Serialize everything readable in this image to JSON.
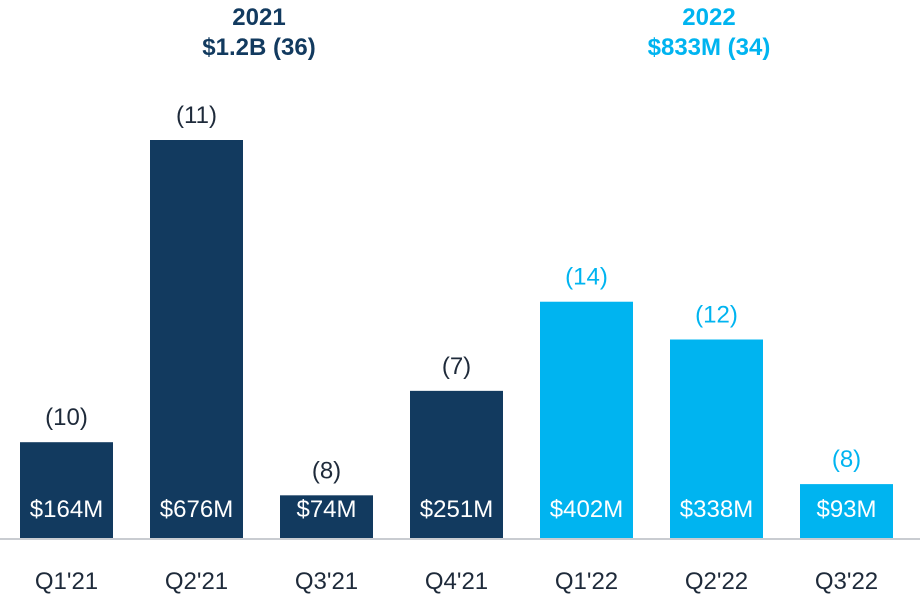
{
  "header_2021": {
    "year": "2021",
    "summary": "$1.2B (36)",
    "color": "#123a5f"
  },
  "header_2022": {
    "year": "2022",
    "summary": "$833M (34)",
    "color": "#00b4f0"
  },
  "chart_data": {
    "type": "bar",
    "categories": [
      "Q1'21",
      "Q2'21",
      "Q3'21",
      "Q4'21",
      "Q1'22",
      "Q2'22",
      "Q3'22"
    ],
    "values": [
      164,
      676,
      74,
      251,
      402,
      338,
      93
    ],
    "value_labels": [
      "$164M",
      "$676M",
      "$74M",
      "$251M",
      "$402M",
      "$338M",
      "$93M"
    ],
    "count_labels": [
      "(10)",
      "(11)",
      "(8)",
      "(7)",
      "(14)",
      "(12)",
      "(8)"
    ],
    "bar_colors": [
      "#123a5f",
      "#123a5f",
      "#123a5f",
      "#123a5f",
      "#00b4f0",
      "#00b4f0",
      "#00b4f0"
    ],
    "count_label_colors": [
      "#1e2a3a",
      "#1e2a3a",
      "#1e2a3a",
      "#1e2a3a",
      "#00b4f0",
      "#00b4f0",
      "#00b4f0"
    ],
    "ylim": [
      0,
      676
    ],
    "grid": false,
    "legend": "none"
  }
}
